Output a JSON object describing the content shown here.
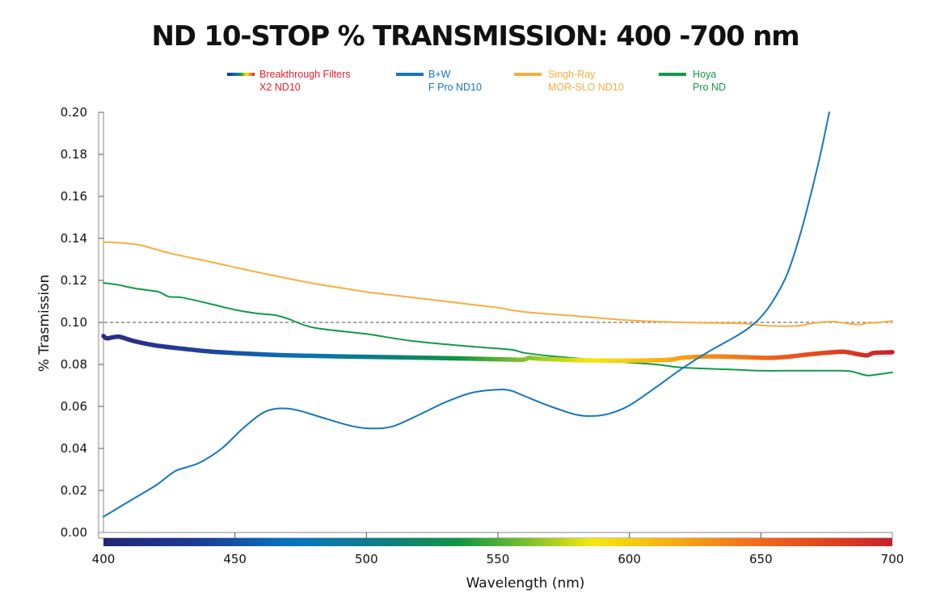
{
  "chart_data": {
    "type": "line",
    "title": "ND 10-STOP % TRANSMISSION: 400 -700 nm",
    "xlabel": "Wavelength (nm)",
    "ylabel": "% Trasmission",
    "xlim": [
      400,
      700
    ],
    "ylim": [
      0,
      0.2
    ],
    "x_ticks": [
      "400",
      "450",
      "500",
      "550",
      "600",
      "650",
      "700"
    ],
    "x_tick_values": [
      400,
      450,
      500,
      550,
      600,
      650,
      700
    ],
    "y_ticks": [
      "0.00",
      "0.02",
      "0.04",
      "0.06",
      "0.08",
      "0.10",
      "0.12",
      "0.14",
      "0.16",
      "0.18",
      "0.20"
    ],
    "y_tick_values": [
      0,
      0.02,
      0.04,
      0.06,
      0.08,
      0.1,
      0.12,
      0.14,
      0.16,
      0.18,
      0.2
    ],
    "reference_line": {
      "y": 0.1,
      "style": "dashed"
    },
    "grid": false,
    "legend_position": "top",
    "spectrum_bar": true,
    "series": [
      {
        "name": "Breakthrough Filters X2 ND10",
        "legend_line1": "Breakthrough Filters",
        "legend_line2": "X2 ND10",
        "color": "#e8202a",
        "style": "spectrum",
        "x": [
          400,
          401,
          402,
          404,
          406,
          408,
          412,
          420,
          430,
          440,
          450,
          470,
          500,
          530,
          555,
          560,
          562,
          565,
          580,
          600,
          615,
          620,
          630,
          640,
          650,
          655,
          660,
          670,
          680,
          683,
          690,
          693,
          700
        ],
        "y": [
          0.0935,
          0.0925,
          0.0925,
          0.093,
          0.0932,
          0.0925,
          0.091,
          0.089,
          0.0875,
          0.0862,
          0.0854,
          0.0843,
          0.0836,
          0.083,
          0.0823,
          0.0823,
          0.0832,
          0.0828,
          0.082,
          0.0818,
          0.0822,
          0.0832,
          0.0838,
          0.0836,
          0.0832,
          0.0832,
          0.0836,
          0.085,
          0.086,
          0.0858,
          0.0843,
          0.0855,
          0.0858
        ]
      },
      {
        "name": "B+W F Pro ND10",
        "legend_line1": "B+W",
        "legend_line2": "F Pro ND10",
        "color": "#1577be",
        "style": "solid",
        "x": [
          400,
          410,
          420,
          427,
          432,
          437,
          445,
          453,
          460,
          465,
          470,
          475,
          485,
          495,
          502,
          510,
          520,
          530,
          540,
          550,
          555,
          560,
          570,
          580,
          587,
          593,
          600,
          610,
          620,
          630,
          640,
          645,
          650,
          655,
          660,
          665,
          670,
          673,
          676
        ],
        "y": [
          0.0075,
          0.015,
          0.0225,
          0.029,
          0.0312,
          0.0335,
          0.04,
          0.0495,
          0.0565,
          0.0588,
          0.059,
          0.0578,
          0.054,
          0.0505,
          0.0495,
          0.0505,
          0.056,
          0.062,
          0.0665,
          0.068,
          0.0675,
          0.065,
          0.06,
          0.056,
          0.0555,
          0.0568,
          0.0605,
          0.069,
          0.078,
          0.086,
          0.093,
          0.097,
          0.1025,
          0.111,
          0.123,
          0.142,
          0.166,
          0.182,
          0.2
        ]
      },
      {
        "name": "Singh-Ray MOR-SLO ND10",
        "legend_line1": "Singh-Ray",
        "legend_line2": "MOR-SLO ND10",
        "color": "#f8ae3c",
        "style": "solid",
        "x": [
          400,
          405,
          410,
          415,
          425,
          440,
          460,
          480,
          490,
          500,
          503,
          520,
          540,
          550,
          560,
          580,
          600,
          620,
          640,
          645,
          650,
          655,
          660,
          665,
          670,
          677,
          680,
          685,
          688,
          690,
          695,
          700
        ],
        "y": [
          0.1382,
          0.138,
          0.1375,
          0.1365,
          0.133,
          0.129,
          0.1235,
          0.1185,
          0.1165,
          0.1145,
          0.114,
          0.1115,
          0.1085,
          0.107,
          0.105,
          0.103,
          0.101,
          0.1,
          0.0996,
          0.0993,
          0.0986,
          0.0983,
          0.0982,
          0.0985,
          0.0996,
          0.1004,
          0.1,
          0.0992,
          0.099,
          0.0996,
          0.1,
          0.1006
        ]
      },
      {
        "name": "Hoya Pro ND",
        "legend_line1": "Hoya",
        "legend_line2": "Pro ND",
        "color": "#119a48",
        "style": "solid",
        "x": [
          400,
          405,
          412,
          420,
          422,
          425,
          430,
          440,
          450,
          458,
          465,
          470,
          480,
          500,
          510,
          520,
          540,
          555,
          560,
          570,
          590,
          610,
          620,
          640,
          650,
          660,
          680,
          685,
          690,
          693,
          700
        ],
        "y": [
          0.1188,
          0.118,
          0.1162,
          0.1148,
          0.114,
          0.1122,
          0.1118,
          0.109,
          0.106,
          0.1043,
          0.1035,
          0.1018,
          0.0975,
          0.0945,
          0.0925,
          0.0908,
          0.0885,
          0.087,
          0.0855,
          0.084,
          0.0818,
          0.08,
          0.0785,
          0.0775,
          0.077,
          0.077,
          0.077,
          0.0765,
          0.0748,
          0.075,
          0.0762
        ]
      }
    ]
  }
}
